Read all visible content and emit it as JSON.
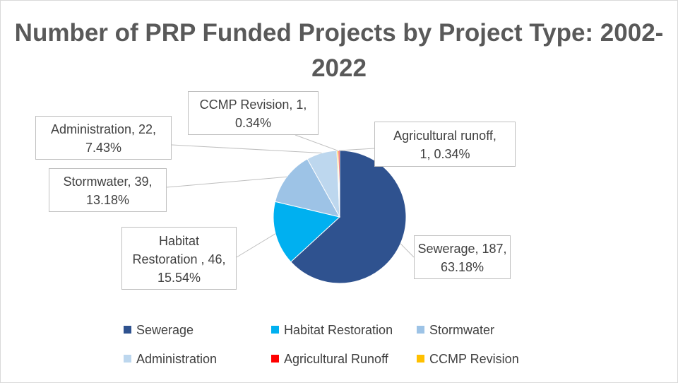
{
  "chart_data": {
    "type": "pie",
    "title": "Number of PRP Funded Projects by Project Type: 2002-2022",
    "slices": [
      {
        "name": "Sewerage",
        "value": 187,
        "percent": "63.18%",
        "color": "#2f528f",
        "label_lines": [
          "Sewerage, 187,",
          "63.18%"
        ]
      },
      {
        "name": "Habitat Restoration",
        "value": 46,
        "percent": "15.54%",
        "color": "#00b0f0",
        "label_lines": [
          "Habitat",
          "Restoration , 46,",
          "15.54%"
        ]
      },
      {
        "name": "Stormwater",
        "value": 39,
        "percent": "13.18%",
        "color": "#9dc3e6",
        "label_lines": [
          "Stormwater, 39,",
          "13.18%"
        ]
      },
      {
        "name": "Administration",
        "value": 22,
        "percent": "7.43%",
        "color": "#bdd7ee",
        "label_lines": [
          "Administration, 22,",
          "7.43%"
        ]
      },
      {
        "name": "Agricultural Runoff",
        "value": 1,
        "percent": "0.34%",
        "color": "#ff0000",
        "label_lines": [
          "Agricultural runoff,",
          "1, 0.34%"
        ]
      },
      {
        "name": "CCMP Revision",
        "value": 1,
        "percent": "0.34%",
        "color": "#ffc000",
        "label_lines": [
          "CCMP Revision, 1,",
          "0.34%"
        ]
      }
    ],
    "legend": [
      "Sewerage",
      "Habitat Restoration",
      "Stormwater",
      "Administration",
      "Agricultural Runoff",
      "CCMP Revision"
    ],
    "legend_position": "bottom"
  }
}
